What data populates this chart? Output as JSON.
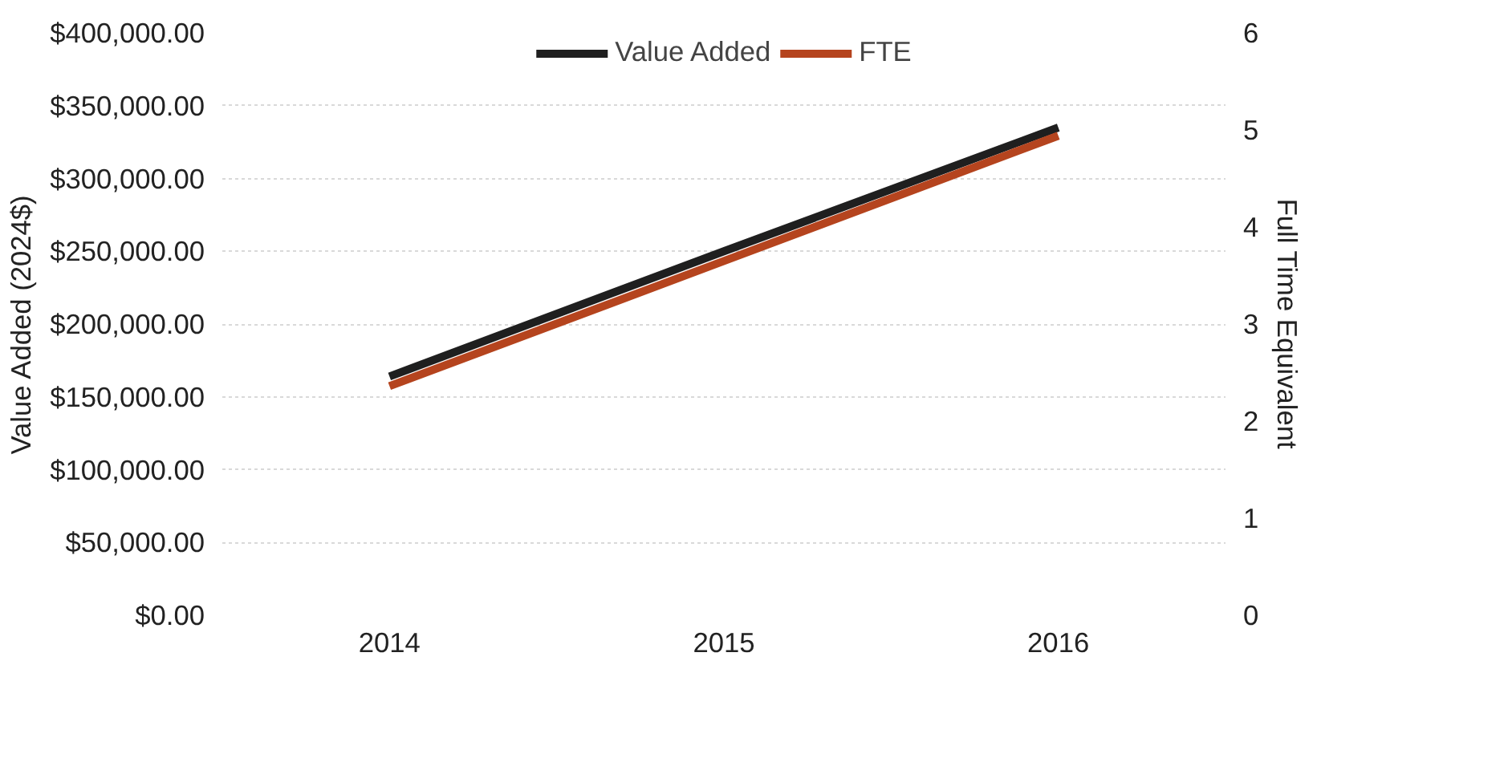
{
  "chart_data": {
    "type": "line",
    "categories": [
      "2014",
      "2015",
      "2016"
    ],
    "ylabel": "Value Added (2024$)",
    "y2label": "Full Time Equivalent",
    "series": [
      {
        "name": "Value Added",
        "color": "#1f1f1f",
        "values": [
          164000,
          250000,
          335000
        ]
      },
      {
        "name": "FTE",
        "color": "#b5441e",
        "values": [
          2.36,
          3.65,
          4.94
        ],
        "axis": "y2"
      }
    ],
    "ylim": [
      0,
      400000
    ],
    "yticks": [
      {
        "value": 0,
        "label": "$0.00"
      },
      {
        "value": 50000,
        "label": "$50,000.00"
      },
      {
        "value": 100000,
        "label": "$100,000.00"
      },
      {
        "value": 150000,
        "label": "$150,000.00"
      },
      {
        "value": 200000,
        "label": "$200,000.00"
      },
      {
        "value": 250000,
        "label": "$250,000.00"
      },
      {
        "value": 300000,
        "label": "$300,000.00"
      },
      {
        "value": 350000,
        "label": "$350,000.00"
      },
      {
        "value": 400000,
        "label": "$400,000.00"
      }
    ],
    "y2lim": [
      0,
      6
    ],
    "y2ticks": [
      0,
      1,
      2,
      3,
      4,
      5,
      6
    ],
    "grid": "y",
    "legend": "top",
    "marker": "none",
    "line_style": "solid"
  }
}
